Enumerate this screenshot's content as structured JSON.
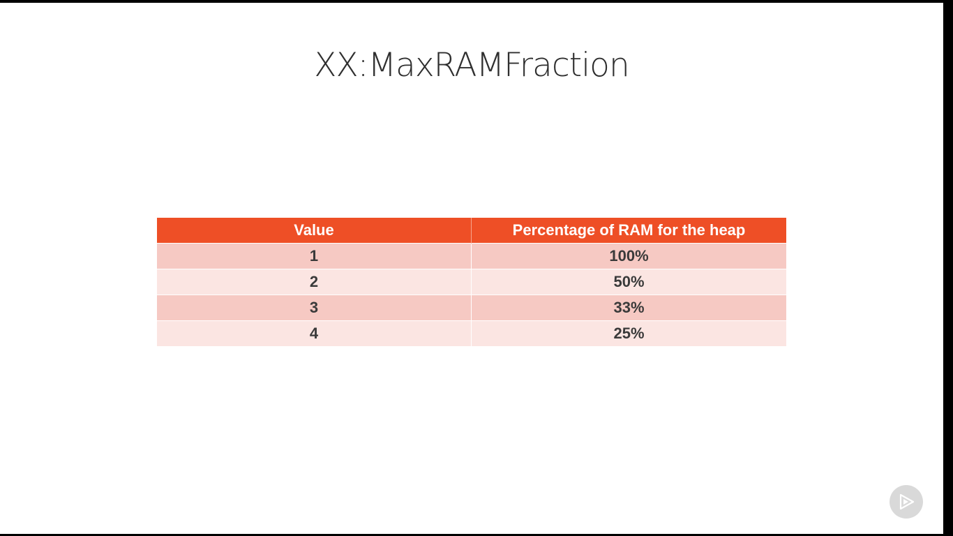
{
  "slide": {
    "title": "XX:MaxRAMFraction"
  },
  "table": {
    "headers": [
      "Value",
      "Percentage of RAM for the heap"
    ],
    "rows": [
      [
        "1",
        "100%"
      ],
      [
        "2",
        "50%"
      ],
      [
        "3",
        "33%"
      ],
      [
        "4",
        "25%"
      ]
    ]
  },
  "colors": {
    "header_bg": "#ee4f26",
    "row_dark": "#f6c9c3",
    "row_light": "#fbe5e2",
    "badge": "#d9d9d9"
  },
  "icons": {
    "watermark": "pluralsight-play-icon"
  }
}
